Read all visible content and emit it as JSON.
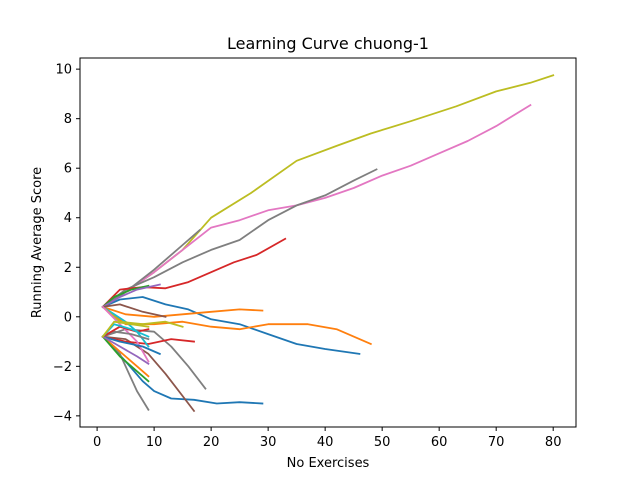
{
  "chart_data": {
    "type": "line",
    "title": "Learning Curve chuong-1",
    "xlabel": "No Exercises",
    "ylabel": "Running Average Score",
    "xlim": [
      -3,
      84
    ],
    "ylim": [
      -4.45,
      10.45
    ],
    "xticks": [
      0,
      10,
      20,
      30,
      40,
      50,
      60,
      70,
      80
    ],
    "yticks": [
      -4,
      -2,
      0,
      2,
      4,
      6,
      8,
      10
    ],
    "grid": false,
    "legend": "none",
    "series": [
      {
        "color": "#bcbd22",
        "points": [
          [
            1,
            0.4
          ],
          [
            5,
            1.0
          ],
          [
            10,
            1.8
          ],
          [
            15,
            2.7
          ],
          [
            20,
            4.0
          ],
          [
            27,
            5.0
          ],
          [
            35,
            6.3
          ],
          [
            42,
            6.9
          ],
          [
            48,
            7.4
          ],
          [
            55,
            7.9
          ],
          [
            63,
            8.5
          ],
          [
            70,
            9.1
          ],
          [
            76,
            9.45
          ],
          [
            80,
            9.75
          ]
        ]
      },
      {
        "color": "#e377c2",
        "points": [
          [
            1,
            0.4
          ],
          [
            5,
            1.0
          ],
          [
            10,
            1.8
          ],
          [
            15,
            2.7
          ],
          [
            20,
            3.6
          ],
          [
            25,
            3.9
          ],
          [
            30,
            4.3
          ],
          [
            35,
            4.5
          ],
          [
            40,
            4.8
          ],
          [
            45,
            5.2
          ],
          [
            50,
            5.7
          ],
          [
            55,
            6.1
          ],
          [
            60,
            6.6
          ],
          [
            65,
            7.1
          ],
          [
            70,
            7.7
          ],
          [
            76,
            8.55
          ]
        ]
      },
      {
        "color": "#7f7f7f",
        "points": [
          [
            1,
            0.4
          ],
          [
            5,
            1.1
          ],
          [
            10,
            1.6
          ],
          [
            15,
            2.2
          ],
          [
            20,
            2.7
          ],
          [
            25,
            3.1
          ],
          [
            30,
            3.9
          ],
          [
            35,
            4.5
          ],
          [
            40,
            4.9
          ],
          [
            45,
            5.5
          ],
          [
            49,
            5.95
          ]
        ]
      },
      {
        "color": "#7f7f7f",
        "points": [
          [
            1,
            0.4
          ],
          [
            5,
            1.0
          ],
          [
            10,
            1.9
          ],
          [
            15,
            2.9
          ],
          [
            18,
            3.5
          ]
        ]
      },
      {
        "color": "#d62728",
        "points": [
          [
            1,
            0.4
          ],
          [
            4,
            1.1
          ],
          [
            8,
            1.2
          ],
          [
            12,
            1.15
          ],
          [
            16,
            1.4
          ],
          [
            20,
            1.8
          ],
          [
            24,
            2.2
          ],
          [
            28,
            2.5
          ],
          [
            33,
            3.15
          ]
        ]
      },
      {
        "color": "#1f77b4",
        "points": [
          [
            1,
            0.4
          ],
          [
            4,
            0.7
          ],
          [
            8,
            0.8
          ],
          [
            12,
            0.5
          ],
          [
            16,
            0.3
          ],
          [
            20,
            -0.1
          ],
          [
            25,
            -0.3
          ],
          [
            30,
            -0.7
          ],
          [
            35,
            -1.1
          ],
          [
            40,
            -1.3
          ],
          [
            46,
            -1.5
          ]
        ]
      },
      {
        "color": "#ff7f0e",
        "points": [
          [
            1,
            0.4
          ],
          [
            5,
            -0.3
          ],
          [
            10,
            -0.3
          ],
          [
            15,
            -0.2
          ],
          [
            20,
            -0.4
          ],
          [
            25,
            -0.5
          ],
          [
            30,
            -0.3
          ],
          [
            37,
            -0.3
          ],
          [
            42,
            -0.5
          ],
          [
            48,
            -1.1
          ]
        ]
      },
      {
        "color": "#ff7f0e",
        "points": [
          [
            1,
            0.4
          ],
          [
            5,
            0.1
          ],
          [
            10,
            0.0
          ],
          [
            15,
            0.1
          ],
          [
            20,
            0.2
          ],
          [
            25,
            0.3
          ],
          [
            29,
            0.25
          ]
        ]
      },
      {
        "color": "#1f77b4",
        "points": [
          [
            1,
            -0.8
          ],
          [
            5,
            -1.8
          ],
          [
            8,
            -2.6
          ],
          [
            10,
            -3.0
          ],
          [
            13,
            -3.3
          ],
          [
            17,
            -3.35
          ],
          [
            21,
            -3.5
          ],
          [
            25,
            -3.45
          ],
          [
            29,
            -3.5
          ]
        ]
      },
      {
        "color": "#8c564b",
        "points": [
          [
            1,
            -0.8
          ],
          [
            5,
            -0.9
          ],
          [
            9,
            -1.5
          ],
          [
            12,
            -2.3
          ],
          [
            15,
            -3.2
          ],
          [
            17,
            -3.8
          ]
        ]
      },
      {
        "color": "#7f7f7f",
        "points": [
          [
            1,
            -0.8
          ],
          [
            5,
            -0.5
          ],
          [
            10,
            -0.6
          ],
          [
            13,
            -1.2
          ],
          [
            16,
            -2.0
          ],
          [
            19,
            -2.9
          ]
        ]
      },
      {
        "color": "#7f7f7f",
        "points": [
          [
            1,
            -0.8
          ],
          [
            4,
            -1.5
          ],
          [
            6,
            -2.5
          ],
          [
            7,
            -3.0
          ],
          [
            9,
            -3.75
          ]
        ]
      },
      {
        "color": "#d62728",
        "points": [
          [
            1,
            -0.8
          ],
          [
            5,
            -1.0
          ],
          [
            9,
            -1.1
          ],
          [
            13,
            -0.9
          ],
          [
            17,
            -1.0
          ]
        ]
      },
      {
        "color": "#2ca02c",
        "points": [
          [
            1,
            0.4
          ],
          [
            3,
            0.8
          ],
          [
            6,
            1.1
          ],
          [
            9,
            1.25
          ]
        ]
      },
      {
        "color": "#9467bd",
        "points": [
          [
            1,
            0.4
          ],
          [
            4,
            0.8
          ],
          [
            7,
            1.1
          ],
          [
            11,
            1.3
          ]
        ]
      },
      {
        "color": "#17becf",
        "points": [
          [
            1,
            0.4
          ],
          [
            3,
            0.1
          ],
          [
            5,
            -0.2
          ],
          [
            7,
            -0.6
          ],
          [
            9,
            -1.2
          ]
        ]
      },
      {
        "color": "#bcbd22",
        "points": [
          [
            1,
            0.4
          ],
          [
            4,
            -0.2
          ],
          [
            8,
            -0.3
          ],
          [
            12,
            -0.2
          ],
          [
            15,
            -0.4
          ]
        ]
      },
      {
        "color": "#8c564b",
        "points": [
          [
            1,
            0.4
          ],
          [
            4,
            0.5
          ],
          [
            8,
            0.2
          ],
          [
            12,
            0.0
          ]
        ]
      },
      {
        "color": "#e377c2",
        "points": [
          [
            1,
            0.4
          ],
          [
            4,
            -0.3
          ],
          [
            7,
            -1.0
          ],
          [
            9,
            -1.8
          ]
        ]
      },
      {
        "color": "#1f77b4",
        "points": [
          [
            1,
            -0.8
          ],
          [
            4,
            -1.0
          ],
          [
            8,
            -1.2
          ],
          [
            11,
            -1.5
          ]
        ]
      },
      {
        "color": "#ff7f0e",
        "points": [
          [
            1,
            -0.8
          ],
          [
            4,
            -1.4
          ],
          [
            7,
            -2.0
          ],
          [
            9,
            -2.4
          ]
        ]
      },
      {
        "color": "#2ca02c",
        "points": [
          [
            1,
            -0.8
          ],
          [
            4,
            -1.6
          ],
          [
            7,
            -2.2
          ],
          [
            9,
            -2.6
          ]
        ]
      },
      {
        "color": "#9467bd",
        "points": [
          [
            1,
            -0.8
          ],
          [
            4,
            -1.2
          ],
          [
            7,
            -1.6
          ],
          [
            9,
            -1.9
          ]
        ]
      },
      {
        "color": "#7f7f7f",
        "points": [
          [
            1,
            -0.8
          ],
          [
            3,
            -0.6
          ],
          [
            6,
            -0.7
          ],
          [
            9,
            -0.9
          ]
        ]
      },
      {
        "color": "#d62728",
        "points": [
          [
            1,
            -0.8
          ],
          [
            4,
            -0.4
          ],
          [
            7,
            -0.6
          ],
          [
            9,
            -0.5
          ]
        ]
      },
      {
        "color": "#17becf",
        "points": [
          [
            1,
            -0.8
          ],
          [
            3,
            -0.3
          ],
          [
            6,
            -0.5
          ],
          [
            9,
            -0.8
          ]
        ]
      },
      {
        "color": "#bcbd22",
        "points": [
          [
            1,
            -0.8
          ],
          [
            3,
            -0.2
          ],
          [
            6,
            -0.3
          ],
          [
            9,
            -0.4
          ]
        ]
      }
    ]
  }
}
